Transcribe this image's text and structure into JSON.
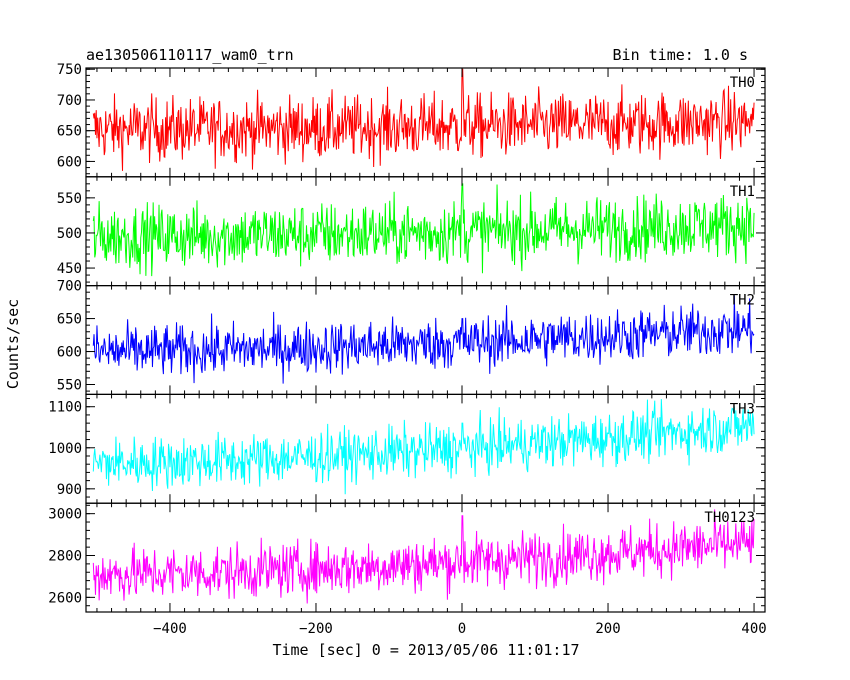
{
  "chart_data": {
    "type": "line",
    "title": "ae130506110117_wam0_trn",
    "bin_time_label": "Bin time: 1.0 s",
    "xlabel": "Time [sec] 0 = 2013/05/06 11:01:17",
    "ylabel": "Counts/sec",
    "xlim": [
      -515,
      415
    ],
    "x_ticks": [
      -400,
      -200,
      0,
      200,
      400
    ],
    "x_tick_labels": [
      "−400",
      "−200",
      "0",
      "200",
      "400"
    ],
    "x_range": [
      -505,
      400
    ],
    "series": [
      {
        "name": "TH0",
        "color": "#ff0000",
        "ylim": [
          575,
          752
        ],
        "y_ticks": [
          600,
          650,
          700,
          750
        ],
        "y_tick_labels": [
          "600",
          "650",
          "700",
          "750"
        ],
        "mean_start": 652,
        "mean_end": 665,
        "noise": 26,
        "spike": 750
      },
      {
        "name": "TH1",
        "color": "#00ff00",
        "ylim": [
          425,
          580
        ],
        "y_ticks": [
          450,
          500,
          550
        ],
        "y_tick_labels": [
          "450",
          "500",
          "550"
        ],
        "mean_start": 495,
        "mean_end": 512,
        "noise": 23,
        "spike": 570
      },
      {
        "name": "TH2",
        "color": "#0000ff",
        "ylim": [
          535,
          700
        ],
        "y_ticks": [
          550,
          600,
          650,
          700
        ],
        "y_tick_labels": [
          "550",
          "600",
          "650",
          "700"
        ],
        "mean_start": 600,
        "mean_end": 635,
        "noise": 20,
        "spike": 650
      },
      {
        "name": "TH3",
        "color": "#00ffff",
        "ylim": [
          865,
          1130
        ],
        "y_ticks": [
          900,
          1000,
          1100
        ],
        "y_tick_labels": [
          "900",
          "1000",
          "1100"
        ],
        "mean_start": 962,
        "mean_end": 1055,
        "noise": 32,
        "spike": 1060
      },
      {
        "name": "TH0123",
        "color": "#ff00ff",
        "ylim": [
          2530,
          3050
        ],
        "y_ticks": [
          2600,
          2800,
          3000
        ],
        "y_tick_labels": [
          "2600",
          "2800",
          "3000"
        ],
        "mean_start": 2710,
        "mean_end": 2860,
        "noise": 65,
        "spike": 2990
      }
    ],
    "grid": false,
    "legend": "top-right"
  }
}
